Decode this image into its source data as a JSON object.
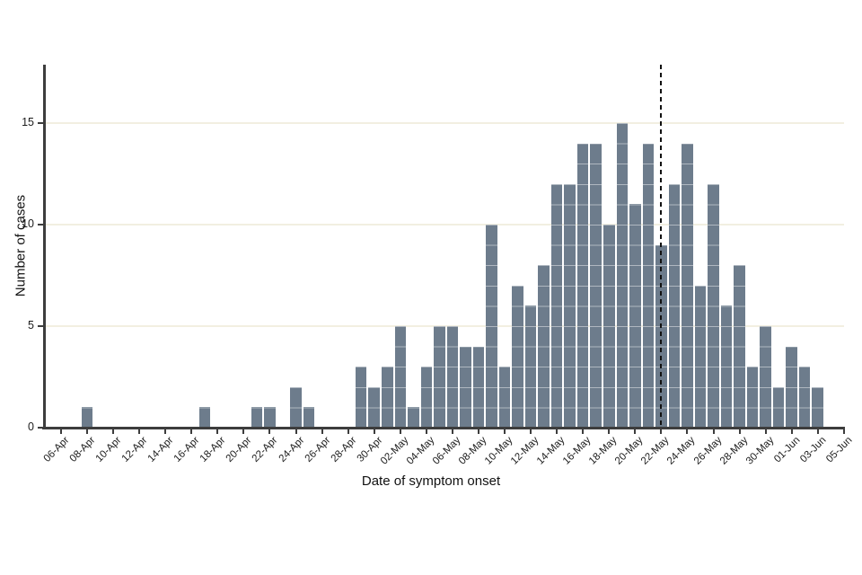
{
  "chart": {
    "y_axis_title": "Number of cases",
    "x_axis_title": "Date of symptom onset",
    "y_tick_labels": [
      "0",
      "5",
      "10",
      "15"
    ],
    "x_tick_labels": [
      "06-Apr",
      "08-Apr",
      "10-Apr",
      "12-Apr",
      "14-Apr",
      "16-Apr",
      "18-Apr",
      "20-Apr",
      "22-Apr",
      "24-Apr",
      "26-Apr",
      "28-Apr",
      "30-Apr",
      "02-May",
      "04-May",
      "06-May",
      "08-May",
      "10-May",
      "12-May",
      "14-May",
      "16-May",
      "18-May",
      "20-May",
      "22-May",
      "24-May",
      "26-May",
      "28-May",
      "30-May",
      "01-Jun",
      "03-Jun",
      "05-Jun"
    ]
  },
  "chart_data": {
    "type": "bar",
    "title": "",
    "xlabel": "Date of symptom onset",
    "ylabel": "Number of cases",
    "x": [
      "06-Apr",
      "07-Apr",
      "08-Apr",
      "09-Apr",
      "10-Apr",
      "11-Apr",
      "12-Apr",
      "13-Apr",
      "14-Apr",
      "15-Apr",
      "16-Apr",
      "17-Apr",
      "18-Apr",
      "19-Apr",
      "20-Apr",
      "21-Apr",
      "22-Apr",
      "23-Apr",
      "24-Apr",
      "25-Apr",
      "26-Apr",
      "27-Apr",
      "28-Apr",
      "29-Apr",
      "30-Apr",
      "01-May",
      "02-May",
      "03-May",
      "04-May",
      "05-May",
      "06-May",
      "07-May",
      "08-May",
      "09-May",
      "10-May",
      "11-May",
      "12-May",
      "13-May",
      "14-May",
      "15-May",
      "16-May",
      "17-May",
      "18-May",
      "19-May",
      "20-May",
      "21-May",
      "22-May",
      "23-May",
      "24-May",
      "25-May",
      "26-May",
      "27-May",
      "28-May",
      "29-May",
      "30-May",
      "31-May",
      "01-Jun",
      "02-Jun",
      "03-Jun",
      "04-Jun",
      "05-Jun"
    ],
    "values": [
      0,
      0,
      1,
      0,
      0,
      0,
      0,
      0,
      0,
      0,
      0,
      1,
      0,
      0,
      0,
      1,
      1,
      0,
      2,
      1,
      0,
      0,
      0,
      3,
      2,
      3,
      5,
      1,
      3,
      5,
      5,
      4,
      4,
      10,
      3,
      7,
      6,
      8,
      12,
      12,
      14,
      14,
      10,
      15,
      11,
      14,
      9,
      12,
      14,
      7,
      12,
      6,
      8,
      3,
      5,
      2,
      4,
      3,
      2,
      0,
      0
    ],
    "y_ticks": [
      0,
      5,
      10,
      15
    ],
    "ylim": [
      0,
      17.9
    ],
    "grid": "horizontal",
    "gridline_values": [
      5,
      10,
      15
    ],
    "x_tick_every": 2,
    "legend_position": "none",
    "annotations": [
      {
        "type": "vline",
        "x": "22-May",
        "style": "dashed"
      }
    ],
    "colors": {
      "bar_fill": "#6d7c8c",
      "bar_cell_line": "rgba(255,255,255,0.45)",
      "gridline": "#f2efe1",
      "axis": "#3d3d3d",
      "text": "#1c1c1c",
      "dashed_line": "#111111",
      "background": "#ffffff"
    }
  }
}
